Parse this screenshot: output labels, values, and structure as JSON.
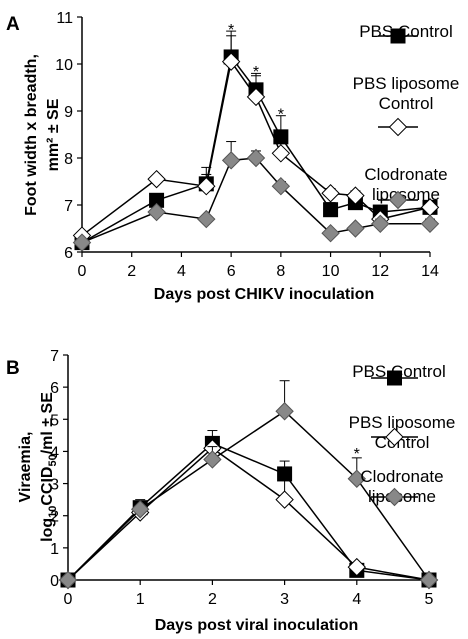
{
  "chart_data": [
    {
      "type": "line",
      "panel_label": "A",
      "xlabel": "Days post CHIKV inoculation",
      "ylabel_lines": [
        "Foot width x breadth,",
        "mm² ± SE"
      ],
      "xlim": [
        0,
        14
      ],
      "ylim": [
        6,
        11
      ],
      "xticks": [
        "0",
        "2",
        "4",
        "6",
        "8",
        "10",
        "12",
        "14"
      ],
      "yticks": [
        "6",
        "7",
        "8",
        "9",
        "10",
        "11"
      ],
      "series": [
        {
          "name_lines": [
            "PBS Control"
          ],
          "marker": "square",
          "color": "#000000",
          "x": [
            0,
            3,
            5,
            6,
            7,
            8,
            10,
            11,
            12,
            14
          ],
          "y": [
            6.2,
            7.1,
            7.45,
            10.15,
            9.45,
            8.45,
            6.9,
            7.05,
            6.85,
            6.95
          ],
          "err": [
            0.05,
            0.1,
            0.2,
            0.55,
            0.35,
            0.45,
            0.15,
            0.1,
            0.1,
            0.1
          ]
        },
        {
          "name_lines": [
            "PBS liposome",
            "Control"
          ],
          "marker": "diamond",
          "color": "#ffffff",
          "x": [
            0,
            3,
            5,
            6,
            7,
            8,
            10,
            11,
            12,
            14
          ],
          "y": [
            6.35,
            7.55,
            7.4,
            10.05,
            9.3,
            8.1,
            7.25,
            7.2,
            6.7,
            6.95
          ],
          "err": [
            0.05,
            0.05,
            0.4,
            0.55,
            0.45,
            0.3,
            0.1,
            0.1,
            0.15,
            0.1
          ]
        },
        {
          "name_lines": [
            "Clodronate",
            "liposome"
          ],
          "marker": "diamond",
          "color": "#888888",
          "x": [
            0,
            3,
            5,
            6,
            7,
            8,
            10,
            11,
            12,
            14
          ],
          "y": [
            6.2,
            6.85,
            6.7,
            7.95,
            8.0,
            7.4,
            6.4,
            6.5,
            6.6,
            6.6
          ],
          "err": [
            0.05,
            0.1,
            0.05,
            0.4,
            0.15,
            0.1,
            0.05,
            0.05,
            0.1,
            0.1
          ]
        }
      ],
      "annotations": [
        {
          "text": "*",
          "x": 6,
          "y": 10.75
        },
        {
          "text": "*",
          "x": 7,
          "y": 9.85
        },
        {
          "text": "*",
          "x": 8,
          "y": 8.95
        }
      ]
    },
    {
      "type": "line",
      "panel_label": "B",
      "xlabel": "Days post viral inoculation",
      "ylabel_lines": [
        "Viraemia,",
        "log10CCID50/ml ± SE"
      ],
      "xlim": [
        0,
        5
      ],
      "ylim": [
        0,
        7
      ],
      "xticks": [
        "0",
        "1",
        "2",
        "3",
        "4",
        "5"
      ],
      "yticks": [
        "0",
        "1",
        "2",
        "3",
        "4",
        "5",
        "6",
        "7"
      ],
      "series": [
        {
          "name_lines": [
            "PBS Control"
          ],
          "marker": "square",
          "color": "#000000",
          "x": [
            0,
            1,
            2,
            3,
            4,
            5
          ],
          "y": [
            0,
            2.25,
            4.25,
            3.3,
            0.3,
            0
          ],
          "err": [
            0,
            0.25,
            0.4,
            0.4,
            0.1,
            0
          ]
        },
        {
          "name_lines": [
            "PBS liposome",
            "Control"
          ],
          "marker": "diamond",
          "color": "#ffffff",
          "x": [
            0,
            1,
            2,
            3,
            4,
            5
          ],
          "y": [
            0,
            2.1,
            4.1,
            2.5,
            0.4,
            0
          ],
          "err": [
            0,
            0.2,
            0.2,
            0.8,
            0.1,
            0
          ]
        },
        {
          "name_lines": [
            "Clodronate",
            "liposome"
          ],
          "marker": "diamond",
          "color": "#888888",
          "x": [
            0,
            1,
            2,
            3,
            4,
            5
          ],
          "y": [
            0,
            2.2,
            3.75,
            5.25,
            3.15,
            0
          ],
          "err": [
            0,
            0.2,
            0.4,
            0.95,
            0.65,
            0
          ]
        }
      ],
      "annotations": [
        {
          "text": "*",
          "x": 4,
          "y": 3.95
        }
      ]
    }
  ]
}
